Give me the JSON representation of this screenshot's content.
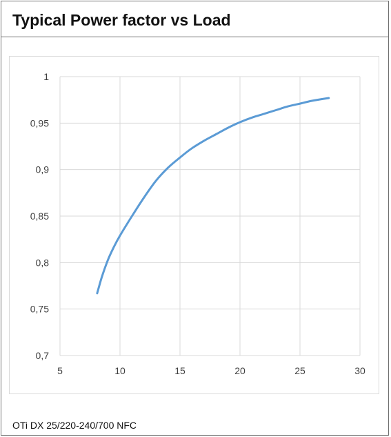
{
  "title": "Typical Power factor vs Load",
  "caption": "OTi DX 25/220-240/700 NFC",
  "chart_data": {
    "type": "line",
    "title": "",
    "xlabel": "",
    "ylabel": "",
    "xlim": [
      5,
      30
    ],
    "ylim": [
      0.7,
      1
    ],
    "x_ticks": [
      5,
      10,
      15,
      20,
      25,
      30
    ],
    "x_tick_labels": [
      "5",
      "10",
      "15",
      "20",
      "25",
      "30"
    ],
    "y_ticks": [
      0.7,
      0.75,
      0.8,
      0.85,
      0.9,
      0.95,
      1
    ],
    "y_tick_labels": [
      "0,7",
      "0,75",
      "0,8",
      "0,85",
      "0,9",
      "0,95",
      "1"
    ],
    "grid": true,
    "legend": "none",
    "series": [
      {
        "color": "#5b9bd5",
        "x": [
          8.1,
          8.5,
          9,
          9.5,
          10,
          11,
          12,
          13,
          14,
          15,
          16,
          17,
          18,
          19,
          20,
          21,
          22,
          23,
          24,
          25,
          26,
          27.4
        ],
        "y": [
          0.767,
          0.785,
          0.803,
          0.817,
          0.829,
          0.85,
          0.87,
          0.888,
          0.902,
          0.913,
          0.923,
          0.931,
          0.938,
          0.945,
          0.951,
          0.956,
          0.96,
          0.964,
          0.968,
          0.971,
          0.974,
          0.977
        ]
      }
    ]
  }
}
